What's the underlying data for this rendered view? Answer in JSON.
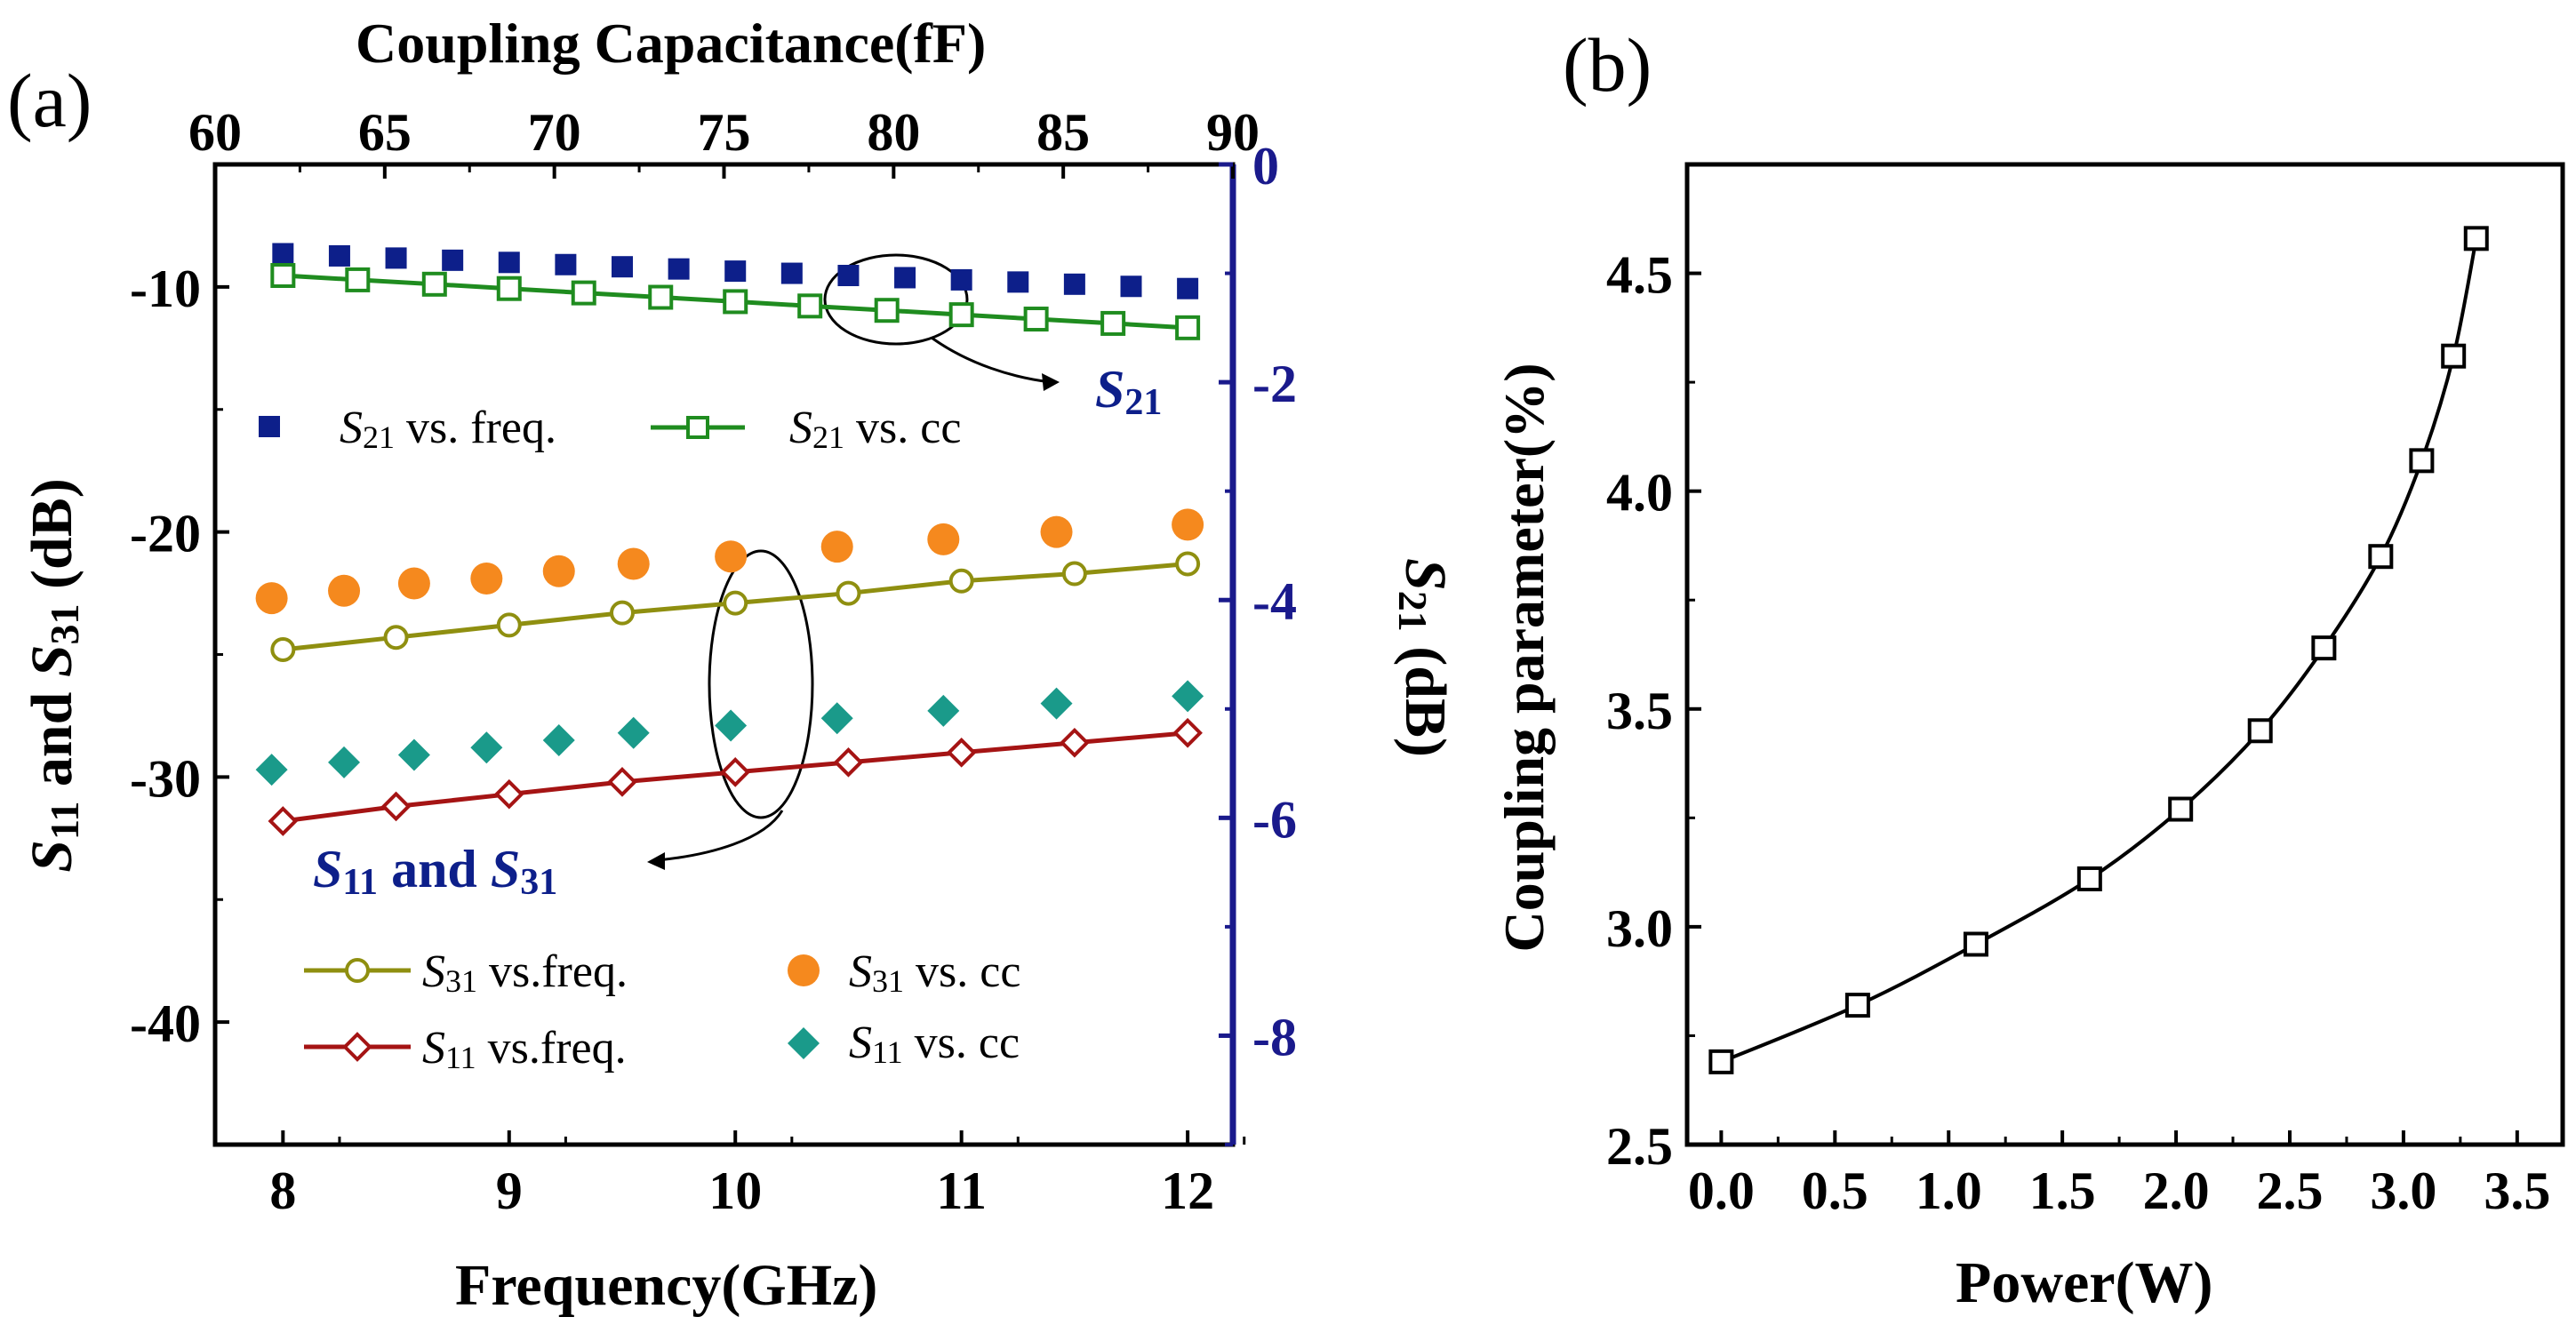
{
  "chart_data": [
    {
      "panel": "(a)",
      "type": "scatter",
      "xlabel": "Frequency(GHz)",
      "x2label": "Coupling Capacitance(fF)",
      "ylabel": {
        "s1": "S",
        "sub1": "11",
        "mid": " and ",
        "s2": "S",
        "sub2": "31",
        "tail": " (dB)"
      },
      "y2label": {
        "s": "S",
        "sub": "21",
        "tail": " (dB)"
      },
      "xlim": [
        7.7,
        12.2
      ],
      "x2lim": [
        60,
        90
      ],
      "ylim": [
        -45,
        -5
      ],
      "y2lim": [
        -9,
        0
      ],
      "xticks": [
        "8",
        "9",
        "10",
        "11",
        "12"
      ],
      "x2ticks": [
        "60",
        "65",
        "70",
        "75",
        "80",
        "85",
        "90"
      ],
      "yticks": [
        "-10",
        "-20",
        "-30",
        "-40"
      ],
      "y2ticks": [
        "0",
        "-2",
        "-4",
        "-6",
        "-8"
      ],
      "series": [
        {
          "name": "S21 vs. freq.",
          "axis": "y2",
          "x": [
            8.0,
            8.25,
            8.5,
            8.75,
            9.0,
            9.25,
            9.5,
            9.75,
            10.0,
            10.25,
            10.5,
            10.75,
            11.0,
            11.25,
            11.5,
            11.75,
            12.0
          ],
          "values": [
            -0.82,
            -0.84,
            -0.86,
            -0.88,
            -0.9,
            -0.92,
            -0.94,
            -0.96,
            -0.98,
            -1.0,
            -1.02,
            -1.04,
            -1.06,
            -1.08,
            -1.1,
            -1.12,
            -1.14
          ]
        },
        {
          "name": "S21 vs. cc",
          "axis": "y2",
          "x": [
            8.0,
            8.33,
            8.67,
            9.0,
            9.33,
            9.67,
            10.0,
            10.33,
            10.67,
            11.0,
            11.33,
            11.67,
            12.0
          ],
          "values": [
            -1.02,
            -1.06,
            -1.1,
            -1.14,
            -1.18,
            -1.22,
            -1.26,
            -1.3,
            -1.34,
            -1.38,
            -1.42,
            -1.46,
            -1.5
          ]
        },
        {
          "name": "S31 vs. cc",
          "axis": "y",
          "x": [
            7.95,
            8.27,
            8.58,
            8.9,
            9.22,
            9.55,
            9.98,
            10.45,
            10.92,
            11.42,
            12.0
          ],
          "values": [
            -22.7,
            -22.4,
            -22.1,
            -21.9,
            -21.6,
            -21.3,
            -21.0,
            -20.6,
            -20.3,
            -20.0,
            -19.7
          ]
        },
        {
          "name": "S31 vs.freq.",
          "axis": "y",
          "x": [
            8.0,
            8.5,
            9.0,
            9.5,
            10.0,
            10.5,
            11.0,
            11.5,
            12.0
          ],
          "values": [
            -24.8,
            -24.3,
            -23.8,
            -23.3,
            -22.9,
            -22.5,
            -22.0,
            -21.7,
            -21.3
          ]
        },
        {
          "name": "S11 vs. cc",
          "axis": "y",
          "x": [
            7.95,
            8.27,
            8.58,
            8.9,
            9.22,
            9.55,
            9.98,
            10.45,
            10.92,
            11.42,
            12.0
          ],
          "values": [
            -29.7,
            -29.4,
            -29.1,
            -28.8,
            -28.5,
            -28.2,
            -27.9,
            -27.6,
            -27.3,
            -27.0,
            -26.7
          ]
        },
        {
          "name": "S11 vs.freq.",
          "axis": "y",
          "x": [
            8.0,
            8.5,
            9.0,
            9.5,
            10.0,
            10.5,
            11.0,
            11.5,
            12.0
          ],
          "values": [
            -31.8,
            -31.2,
            -30.7,
            -30.2,
            -29.8,
            -29.4,
            -29.0,
            -28.6,
            -28.2
          ]
        }
      ],
      "legend": [
        {
          "name": "S21 vs. freq.",
          "s": "S",
          "sub": "21",
          "text": " vs. freq."
        },
        {
          "name": "S21 vs. cc",
          "s": "S",
          "sub": "21",
          "text": " vs. cc"
        },
        {
          "name": "S31 vs.freq.",
          "s": "S",
          "sub": "31",
          "text": " vs.freq."
        },
        {
          "name": "S31 vs. cc",
          "s": "S",
          "sub": "31",
          "text": " vs. cc"
        },
        {
          "name": "S11 vs.freq.",
          "s": "S",
          "sub": "11",
          "text": " vs.freq."
        },
        {
          "name": "S11 vs. cc",
          "s": "S",
          "sub": "11",
          "text": " vs. cc"
        }
      ],
      "annotations": [
        {
          "name": "s21",
          "s": "S",
          "sub": "21"
        },
        {
          "name": "s11-s31",
          "s1": "S",
          "sub1": "11",
          "mid": " and ",
          "s2": "S",
          "sub2": "31"
        }
      ]
    },
    {
      "panel": "(b)",
      "type": "line",
      "xlabel": "Power(W)",
      "ylabel": "Coupling parameter(%)",
      "xlim": [
        -0.15,
        3.7
      ],
      "ylim": [
        2.5,
        4.75
      ],
      "xticks": [
        "0.0",
        "0.5",
        "1.0",
        "1.5",
        "2.0",
        "2.5",
        "3.0",
        "3.5"
      ],
      "yticks": [
        "2.5",
        "3.0",
        "3.5",
        "4.0",
        "4.5"
      ],
      "series": [
        {
          "name": "Coupling parameter",
          "x": [
            0.0,
            0.6,
            1.12,
            1.62,
            2.02,
            2.37,
            2.65,
            2.9,
            3.08,
            3.22,
            3.32
          ],
          "values": [
            2.69,
            2.82,
            2.96,
            3.11,
            3.27,
            3.45,
            3.64,
            3.85,
            4.07,
            4.31,
            4.58
          ]
        }
      ]
    }
  ],
  "colors": {
    "s21_freq": "#0d1f8a",
    "s21_cc": "#1f8c1f",
    "s31_cc": "#f5891e",
    "s31_freq": "#8f8f10",
    "s11_cc": "#1a9a8a",
    "s11_freq": "#a51414",
    "right_axis": "#1a1a8c",
    "annotation": "#0d1f8a"
  }
}
